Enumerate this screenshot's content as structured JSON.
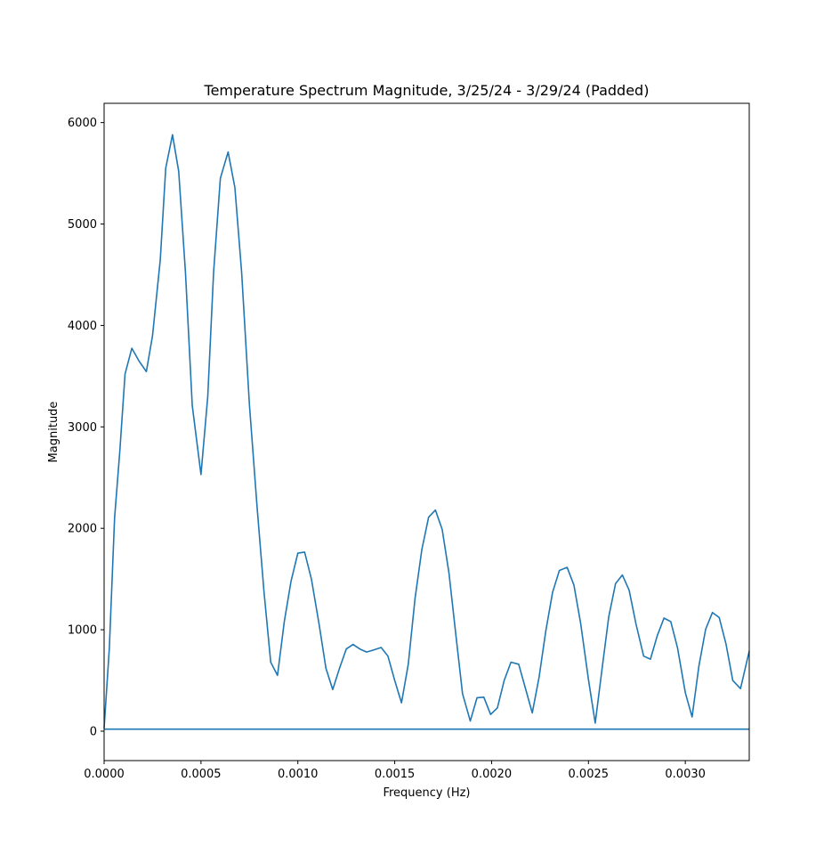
{
  "chart_data": {
    "type": "line",
    "title": "Temperature Spectrum Magnitude, 3/25/24 - 3/29/24 (Padded)",
    "xlabel": "Frequency (Hz)",
    "ylabel": "Magnitude",
    "xlim": [
      0,
      0.00333
    ],
    "ylim": [
      -290,
      6190
    ],
    "xticks": [
      "0.0000",
      "0.0005",
      "0.0010",
      "0.0015",
      "0.0020",
      "0.0025",
      "0.0030"
    ],
    "yticks": [
      "0",
      "1000",
      "2000",
      "3000",
      "4000",
      "5000",
      "6000"
    ],
    "grid": false,
    "line_color": "#1f77b4",
    "baseline": 20,
    "series": [
      {
        "x": [
          0,
          2.7e-05,
          5.4e-05,
          8.1e-05,
          0.000108,
          0.000143,
          0.00018,
          0.000218,
          0.00025,
          0.00029,
          0.000318,
          0.000353,
          0.000385,
          0.00042,
          0.000455,
          0.0005,
          0.000535,
          0.000565,
          0.0006,
          0.00064,
          0.000675,
          0.00071,
          0.00075,
          0.00079,
          0.000825,
          0.00086,
          0.000895,
          0.00093,
          0.000965,
          0.001,
          0.001035,
          0.00107,
          0.00111,
          0.001145,
          0.00118,
          0.001215,
          0.00125,
          0.001285,
          0.00132,
          0.001355,
          0.00139,
          0.00143,
          0.001465,
          0.0015,
          0.001535,
          0.00157,
          0.001605,
          0.00164,
          0.001675,
          0.00171,
          0.001745,
          0.00178,
          0.001815,
          0.00185,
          0.00189,
          0.001925,
          0.00196,
          0.001995,
          0.00203,
          0.002065,
          0.0021,
          0.00214,
          0.002175,
          0.00221,
          0.002245,
          0.00228,
          0.002315,
          0.00235,
          0.00239,
          0.002425,
          0.00246,
          0.0025,
          0.002535,
          0.00257,
          0.002605,
          0.00264,
          0.002675,
          0.00271,
          0.002745,
          0.002785,
          0.00282,
          0.002855,
          0.00289,
          0.002925,
          0.00296,
          0.003,
          0.003035,
          0.00307,
          0.003105,
          0.00314,
          0.003175,
          0.00321,
          0.003245,
          0.003285,
          0.00333
        ],
        "y": [
          30,
          820,
          2100,
          2760,
          3520,
          3775,
          3650,
          3545,
          3900,
          4650,
          5550,
          5880,
          5520,
          4520,
          3210,
          2530,
          3300,
          4520,
          5450,
          5710,
          5360,
          4520,
          3220,
          2200,
          1380,
          680,
          550,
          1080,
          1480,
          1755,
          1765,
          1500,
          1050,
          620,
          410,
          620,
          810,
          855,
          810,
          780,
          800,
          825,
          740,
          500,
          280,
          660,
          1310,
          1790,
          2110,
          2180,
          1990,
          1560,
          960,
          370,
          100,
          330,
          335,
          165,
          230,
          500,
          680,
          660,
          420,
          180,
          530,
          990,
          1370,
          1585,
          1615,
          1440,
          1060,
          510,
          80,
          610,
          1130,
          1455,
          1540,
          1390,
          1060,
          740,
          710,
          940,
          1115,
          1080,
          820,
          380,
          140,
          640,
          1005,
          1170,
          1120,
          860,
          500,
          420,
          790
        ]
      }
    ]
  }
}
